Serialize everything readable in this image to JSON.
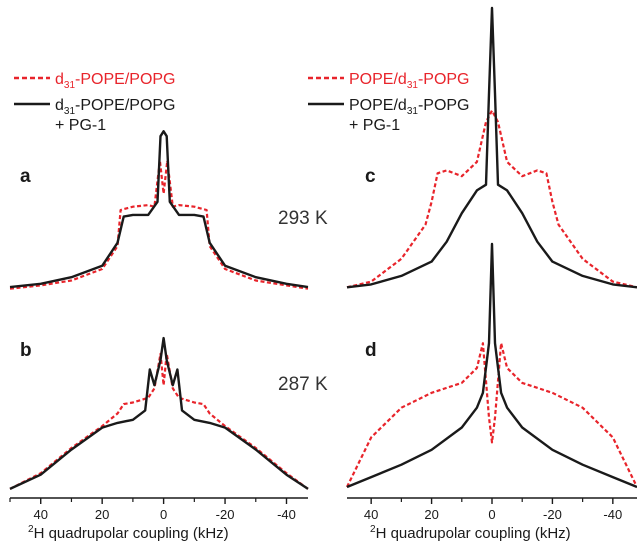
{
  "colors": {
    "red": "#e8242b",
    "black": "#1a1a1a"
  },
  "legends": [
    {
      "side": "left",
      "red": {
        "prefix": "d",
        "sub": "31",
        "suffix": "-POPE/POPG"
      },
      "black": {
        "prefix": "d",
        "sub": "31",
        "suffix": "-POPE/POPG",
        "line2": "+ PG-1"
      }
    },
    {
      "side": "right",
      "red": {
        "prefix": "POPE/d",
        "sub": "31",
        "suffix": "-POPG"
      },
      "black": {
        "prefix": "POPE/d",
        "sub": "31",
        "suffix": "-POPG",
        "line2": "+ PG-1"
      }
    }
  ],
  "temperatures": {
    "top": "293 K",
    "bottom": "287 K"
  },
  "axis": {
    "xlabel_sup": "2",
    "xlabel": "H quadrupolar coupling (kHz)",
    "ticks": [
      40,
      20,
      0,
      -20,
      -40
    ],
    "tick_labels": [
      "40",
      "20",
      "0",
      "-20",
      "-40"
    ],
    "xlim": [
      50,
      -47
    ]
  },
  "chart_data": [
    {
      "type": "line",
      "panel_label": "a",
      "xlim": [
        50,
        -47
      ],
      "reversed_x": true,
      "series": [
        {
          "style": "red-dashed",
          "x": [
            50,
            40,
            30,
            20,
            15,
            14,
            10,
            5,
            3,
            1.2,
            0,
            -1.2,
            -3,
            -5,
            -10,
            -14,
            -15,
            -20,
            -30,
            -40,
            -47
          ],
          "y": [
            0.02,
            0.04,
            0.07,
            0.14,
            0.28,
            0.5,
            0.52,
            0.53,
            0.52,
            0.8,
            0.6,
            0.8,
            0.52,
            0.53,
            0.52,
            0.5,
            0.28,
            0.14,
            0.07,
            0.04,
            0.02
          ]
        },
        {
          "style": "black-solid",
          "x": [
            50,
            40,
            30,
            20,
            15,
            13,
            10,
            5,
            2,
            1,
            0,
            -1,
            -2,
            -5,
            -10,
            -13,
            -15,
            -20,
            -30,
            -40,
            -47
          ],
          "y": [
            0.03,
            0.05,
            0.09,
            0.16,
            0.3,
            0.46,
            0.47,
            0.47,
            0.55,
            0.95,
            0.98,
            0.95,
            0.55,
            0.47,
            0.47,
            0.46,
            0.3,
            0.16,
            0.09,
            0.05,
            0.03
          ]
        }
      ]
    },
    {
      "type": "line",
      "panel_label": "b",
      "xlim": [
        50,
        -47
      ],
      "reversed_x": true,
      "series": [
        {
          "style": "red-dashed",
          "x": [
            50,
            40,
            30,
            20,
            15,
            13,
            10,
            5,
            3,
            1,
            0,
            -1,
            -3,
            -5,
            -10,
            -13,
            -15,
            -20,
            -30,
            -40,
            -47
          ],
          "y": [
            0.02,
            0.12,
            0.28,
            0.42,
            0.5,
            0.56,
            0.57,
            0.6,
            0.66,
            0.88,
            0.68,
            0.88,
            0.66,
            0.6,
            0.57,
            0.56,
            0.5,
            0.42,
            0.28,
            0.12,
            0.02
          ]
        },
        {
          "style": "black-solid",
          "x": [
            50,
            40,
            30,
            20,
            15,
            10,
            6,
            4.5,
            3,
            1,
            0,
            -1,
            -3,
            -4.5,
            -6,
            -10,
            -15,
            -20,
            -30,
            -40,
            -47
          ],
          "y": [
            0.02,
            0.11,
            0.27,
            0.41,
            0.44,
            0.46,
            0.52,
            0.78,
            0.68,
            0.84,
            0.98,
            0.84,
            0.68,
            0.78,
            0.52,
            0.46,
            0.44,
            0.41,
            0.27,
            0.11,
            0.02
          ]
        }
      ]
    },
    {
      "type": "line",
      "panel_label": "c",
      "xlim": [
        48,
        -48
      ],
      "reversed_x": true,
      "series": [
        {
          "style": "red-dashed",
          "x": [
            48,
            40,
            30,
            22,
            20,
            18,
            15,
            10,
            5,
            2,
            0,
            -2,
            -5,
            -10,
            -15,
            -18,
            -20,
            -22,
            -30,
            -40,
            -48
          ],
          "y": [
            0.02,
            0.04,
            0.12,
            0.24,
            0.32,
            0.42,
            0.43,
            0.41,
            0.46,
            0.6,
            0.64,
            0.6,
            0.46,
            0.41,
            0.43,
            0.42,
            0.32,
            0.24,
            0.12,
            0.04,
            0.02
          ]
        },
        {
          "style": "black-solid",
          "x": [
            48,
            40,
            30,
            20,
            15,
            10,
            5,
            2,
            1,
            0,
            -1,
            -2,
            -5,
            -10,
            -15,
            -20,
            -30,
            -40,
            -48
          ],
          "y": [
            0.02,
            0.03,
            0.06,
            0.11,
            0.18,
            0.28,
            0.36,
            0.38,
            0.7,
            1.0,
            0.7,
            0.38,
            0.36,
            0.28,
            0.18,
            0.11,
            0.06,
            0.03,
            0.02
          ]
        }
      ]
    },
    {
      "type": "line",
      "panel_label": "d",
      "xlim": [
        48,
        -48
      ],
      "reversed_x": true,
      "series": [
        {
          "style": "red-dashed",
          "x": [
            48,
            40,
            30,
            20,
            10,
            5,
            3,
            1,
            0,
            -1,
            -3,
            -5,
            -10,
            -20,
            -30,
            -40,
            -48
          ],
          "y": [
            0.02,
            0.22,
            0.34,
            0.4,
            0.44,
            0.5,
            0.6,
            0.3,
            0.2,
            0.3,
            0.6,
            0.5,
            0.44,
            0.4,
            0.34,
            0.22,
            0.02
          ]
        },
        {
          "style": "black-solid",
          "x": [
            48,
            40,
            30,
            20,
            10,
            5,
            3,
            1,
            0,
            -1,
            -3,
            -5,
            -10,
            -20,
            -30,
            -40,
            -48
          ],
          "y": [
            0.02,
            0.06,
            0.11,
            0.17,
            0.26,
            0.34,
            0.4,
            0.6,
            1.0,
            0.6,
            0.4,
            0.34,
            0.26,
            0.17,
            0.11,
            0.06,
            0.02
          ]
        }
      ]
    }
  ]
}
